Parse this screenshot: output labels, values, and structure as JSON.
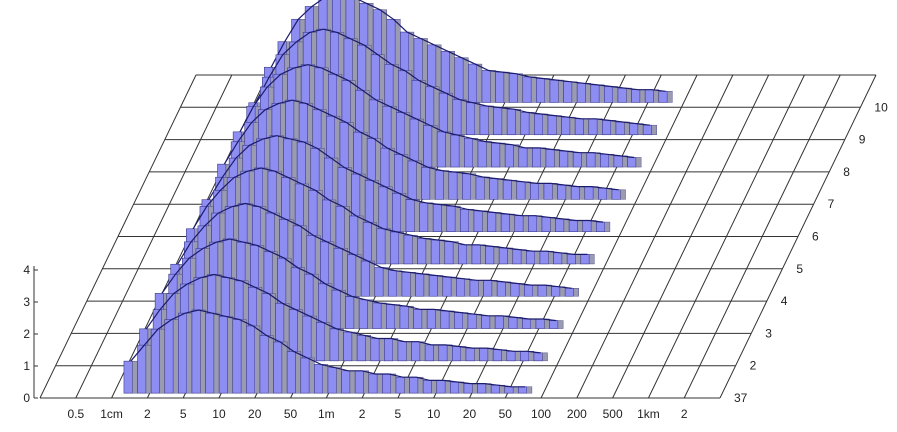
{
  "chart_data": {
    "type": "bar",
    "projection": "3d-oblique",
    "x_axis": {
      "scale": "log",
      "tick_labels": [
        "0.5",
        "1cm",
        "2",
        "5",
        "10",
        "20",
        "50",
        "1m",
        "2",
        "5",
        "10",
        "20",
        "50",
        "100",
        "200",
        "500",
        "1km",
        "2"
      ]
    },
    "y_axis": {
      "range": [
        0,
        4
      ],
      "tick_labels": [
        "0",
        "1",
        "2",
        "3",
        "4"
      ]
    },
    "depth_axis": {
      "tick_labels": [
        "37",
        "2",
        "3",
        "4",
        "5",
        "6",
        "7",
        "8",
        "9",
        "10"
      ]
    },
    "colors": {
      "bar_front": "#8e8ef2",
      "bar_side": "#9a9ab0",
      "grid": "#333333",
      "profile": "#1c1c6e"
    },
    "series": [
      {
        "depth": "37",
        "values": [
          1.0,
          1.5,
          2.0,
          2.3,
          2.5,
          2.6,
          2.5,
          2.4,
          2.3,
          2.1,
          1.8,
          1.6,
          1.3,
          1.1,
          0.9,
          0.8,
          0.7,
          0.7,
          0.6,
          0.6,
          0.5,
          0.5,
          0.4,
          0.4,
          0.35,
          0.3,
          0.3,
          0.25,
          0.2,
          0.2
        ]
      },
      {
        "depth": "2",
        "values": [
          1.0,
          1.6,
          2.1,
          2.4,
          2.6,
          2.7,
          2.6,
          2.5,
          2.3,
          2.1,
          1.8,
          1.6,
          1.4,
          1.2,
          1.0,
          0.9,
          0.8,
          0.7,
          0.7,
          0.6,
          0.6,
          0.5,
          0.5,
          0.45,
          0.4,
          0.4,
          0.35,
          0.3,
          0.3,
          0.25
        ]
      },
      {
        "depth": "3",
        "values": [
          1.1,
          1.7,
          2.2,
          2.5,
          2.7,
          2.8,
          2.7,
          2.6,
          2.4,
          2.2,
          1.9,
          1.7,
          1.4,
          1.2,
          1.0,
          0.9,
          0.8,
          0.75,
          0.7,
          0.6,
          0.6,
          0.55,
          0.5,
          0.45,
          0.4,
          0.4,
          0.35,
          0.3,
          0.3,
          0.25
        ]
      },
      {
        "depth": "4",
        "values": [
          1.0,
          1.7,
          2.2,
          2.6,
          2.8,
          2.9,
          2.8,
          2.6,
          2.4,
          2.2,
          1.9,
          1.7,
          1.5,
          1.3,
          1.1,
          0.9,
          0.8,
          0.75,
          0.7,
          0.65,
          0.6,
          0.55,
          0.5,
          0.5,
          0.45,
          0.4,
          0.35,
          0.35,
          0.3,
          0.25
        ]
      },
      {
        "depth": "5",
        "values": [
          1.1,
          1.8,
          2.3,
          2.7,
          2.9,
          3.0,
          2.9,
          2.7,
          2.5,
          2.3,
          2.0,
          1.8,
          1.5,
          1.3,
          1.1,
          1.0,
          0.9,
          0.8,
          0.75,
          0.7,
          0.6,
          0.6,
          0.55,
          0.5,
          0.45,
          0.4,
          0.4,
          0.35,
          0.3,
          0.3
        ]
      },
      {
        "depth": "6",
        "values": [
          1.0,
          1.7,
          2.3,
          2.7,
          2.9,
          3.0,
          2.9,
          2.8,
          2.6,
          2.3,
          2.0,
          1.8,
          1.6,
          1.4,
          1.2,
          1.0,
          0.9,
          0.85,
          0.8,
          0.7,
          0.65,
          0.6,
          0.55,
          0.5,
          0.5,
          0.45,
          0.4,
          0.35,
          0.35,
          0.3
        ]
      },
      {
        "depth": "7",
        "values": [
          1.1,
          1.8,
          2.4,
          2.8,
          3.0,
          3.1,
          3.0,
          2.8,
          2.6,
          2.4,
          2.1,
          1.9,
          1.6,
          1.4,
          1.2,
          1.0,
          0.9,
          0.85,
          0.8,
          0.7,
          0.65,
          0.6,
          0.55,
          0.5,
          0.5,
          0.45,
          0.4,
          0.4,
          0.35,
          0.3
        ]
      },
      {
        "depth": "8",
        "values": [
          1.1,
          1.9,
          2.5,
          2.9,
          3.1,
          3.2,
          3.1,
          2.9,
          2.7,
          2.4,
          2.1,
          1.9,
          1.7,
          1.5,
          1.3,
          1.1,
          1.0,
          0.9,
          0.8,
          0.75,
          0.7,
          0.6,
          0.6,
          0.55,
          0.5,
          0.45,
          0.45,
          0.4,
          0.35,
          0.3
        ]
      },
      {
        "depth": "9",
        "values": [
          1.0,
          1.8,
          2.5,
          2.9,
          3.2,
          3.3,
          3.2,
          3.0,
          2.8,
          2.5,
          2.2,
          2.0,
          1.7,
          1.5,
          1.3,
          1.1,
          1.0,
          0.9,
          0.85,
          0.8,
          0.7,
          0.65,
          0.6,
          0.55,
          0.5,
          0.5,
          0.45,
          0.4,
          0.35,
          0.3
        ]
      },
      {
        "depth": "10",
        "values": [
          1.1,
          1.9,
          2.6,
          3.0,
          3.3,
          3.5,
          3.3,
          3.1,
          2.9,
          2.6,
          2.2,
          2.0,
          1.8,
          1.6,
          1.4,
          1.2,
          1.0,
          0.95,
          0.9,
          0.8,
          0.75,
          0.7,
          0.65,
          0.6,
          0.55,
          0.5,
          0.45,
          0.4,
          0.4,
          0.35
        ]
      }
    ]
  }
}
